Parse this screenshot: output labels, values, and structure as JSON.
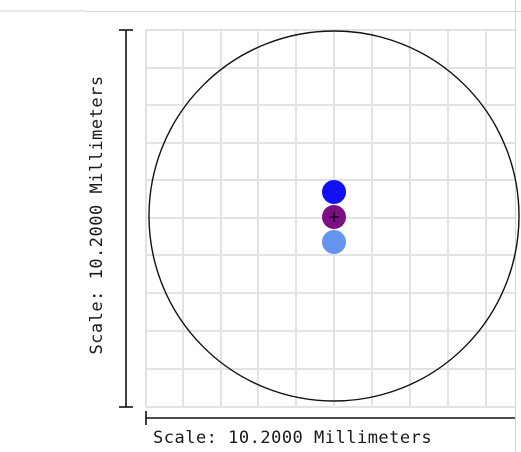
{
  "scale": {
    "vertical_label": "Scale: 10.2000 Millimeters",
    "horizontal_label": "Scale: 10.2000 Millimeters"
  },
  "colors": {
    "grid": "#e3e3e3",
    "circle": "#111111",
    "axis": "#111111",
    "dot_blue": "#1010f0",
    "dot_purple": "#7b1085",
    "dot_light_blue": "#6495ed"
  },
  "markers": [
    {
      "name": "blue-dot",
      "color": "#1010f0"
    },
    {
      "name": "purple-dot-center",
      "color": "#7b1085"
    },
    {
      "name": "light-blue-dot",
      "color": "#6495ed"
    }
  ]
}
